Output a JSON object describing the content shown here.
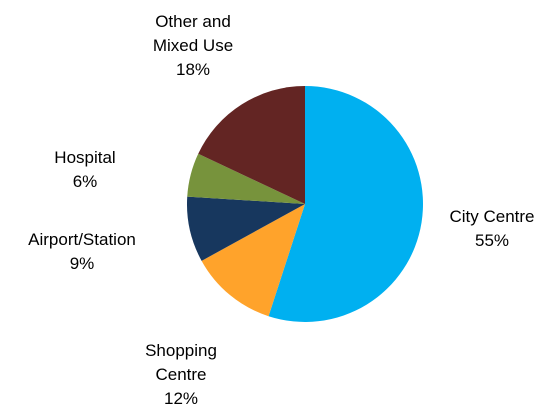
{
  "chart_data": {
    "type": "pie",
    "categories": [
      "City Centre",
      "Shopping Centre",
      "Airport/Station",
      "Hospital",
      "Other and Mixed Use"
    ],
    "values": [
      55,
      12,
      9,
      6,
      18
    ],
    "value_labels": [
      "55%",
      "12%",
      "9%",
      "6%",
      "18%"
    ],
    "colors": [
      "#00b0f0",
      "#ffa32b",
      "#17375e",
      "#77933c",
      "#632523"
    ]
  }
}
